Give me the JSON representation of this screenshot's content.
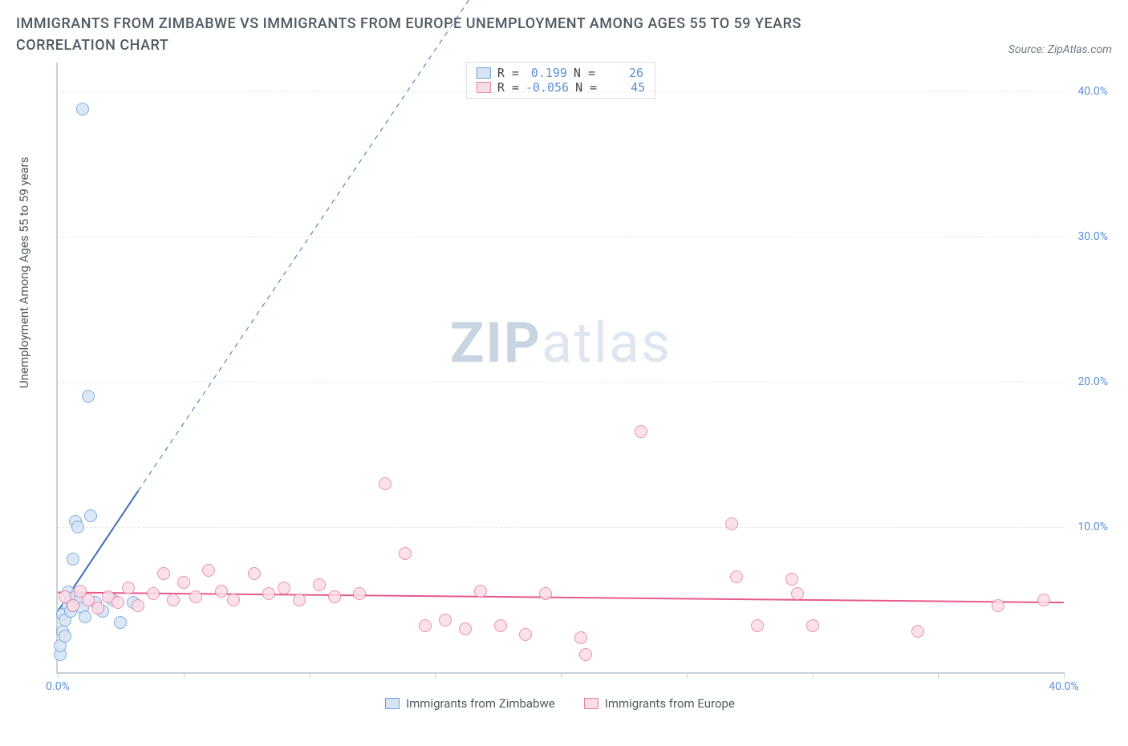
{
  "title": "IMMIGRANTS FROM ZIMBABWE VS IMMIGRANTS FROM EUROPE UNEMPLOYMENT AMONG AGES 55 TO 59 YEARS CORRELATION CHART",
  "title_fontsize": 18,
  "source": "Source: ZipAtlas.com",
  "ylabel": "Unemployment Among Ages 55 to 59 years",
  "watermark_a": "ZIP",
  "watermark_b": "atlas",
  "chart": {
    "type": "scatter",
    "background_color": "#ffffff",
    "axis_color": "#c9d0d8",
    "grid_color": "#e2e6ea",
    "tick_label_color": "#5b8fd6",
    "xlim": [
      0,
      40
    ],
    "ylim": [
      0,
      42
    ],
    "yticks": [
      10,
      20,
      30,
      40
    ],
    "ytick_labels": [
      "10.0%",
      "20.0%",
      "30.0%",
      "40.0%"
    ],
    "xticks": [
      0,
      5,
      10,
      15,
      20,
      25,
      30,
      35,
      40
    ],
    "xtick_labels_shown": {
      "0": "0.0%",
      "40": "40.0%"
    },
    "marker_radius": 8,
    "marker_stroke_width": 1.3,
    "series": [
      {
        "name": "Immigrants from Zimbabwe",
        "fill": "#d6e4f5",
        "stroke": "#6f9fd8",
        "R": "0.199",
        "N": "26",
        "points": [
          [
            0.1,
            1.2
          ],
          [
            0.1,
            1.8
          ],
          [
            0.2,
            2.8
          ],
          [
            0.2,
            4.0
          ],
          [
            0.3,
            2.5
          ],
          [
            0.3,
            3.6
          ],
          [
            0.4,
            4.6
          ],
          [
            0.4,
            5.5
          ],
          [
            0.5,
            5.0
          ],
          [
            0.5,
            4.2
          ],
          [
            0.6,
            4.6
          ],
          [
            0.6,
            7.8
          ],
          [
            0.7,
            5.2
          ],
          [
            0.7,
            10.4
          ],
          [
            0.8,
            10.0
          ],
          [
            0.9,
            5.0
          ],
          [
            1.0,
            4.4
          ],
          [
            1.1,
            3.8
          ],
          [
            1.3,
            10.8
          ],
          [
            1.5,
            4.8
          ],
          [
            1.8,
            4.2
          ],
          [
            2.2,
            5.0
          ],
          [
            2.5,
            3.4
          ],
          [
            3.0,
            4.8
          ],
          [
            1.2,
            19.0
          ],
          [
            1.0,
            38.8
          ]
        ],
        "fit": {
          "x1": 0,
          "y1": 4.2,
          "x2": 3.2,
          "y2": 12.5,
          "dash": false,
          "ext_x2": 17,
          "ext_y2": 48,
          "color": "#3f6fb5",
          "width": 2
        }
      },
      {
        "name": "Immigrants from Europe",
        "fill": "#fbdde7",
        "stroke": "#e87fa5",
        "R": "-0.056",
        "N": "45",
        "points": [
          [
            0.3,
            5.2
          ],
          [
            0.6,
            4.6
          ],
          [
            0.9,
            5.6
          ],
          [
            1.2,
            5.0
          ],
          [
            1.6,
            4.4
          ],
          [
            2.0,
            5.2
          ],
          [
            2.4,
            4.8
          ],
          [
            2.8,
            5.8
          ],
          [
            3.2,
            4.6
          ],
          [
            3.8,
            5.4
          ],
          [
            4.2,
            6.8
          ],
          [
            4.6,
            5.0
          ],
          [
            5.0,
            6.2
          ],
          [
            5.5,
            5.2
          ],
          [
            6.0,
            7.0
          ],
          [
            6.5,
            5.6
          ],
          [
            7.0,
            5.0
          ],
          [
            7.8,
            6.8
          ],
          [
            8.4,
            5.4
          ],
          [
            9.0,
            5.8
          ],
          [
            9.6,
            5.0
          ],
          [
            10.4,
            6.0
          ],
          [
            11.0,
            5.2
          ],
          [
            12.0,
            5.4
          ],
          [
            13.0,
            13.0
          ],
          [
            13.8,
            8.2
          ],
          [
            14.6,
            3.2
          ],
          [
            15.4,
            3.6
          ],
          [
            16.2,
            3.0
          ],
          [
            16.8,
            5.6
          ],
          [
            17.6,
            3.2
          ],
          [
            18.6,
            2.6
          ],
          [
            19.4,
            5.4
          ],
          [
            20.8,
            2.4
          ],
          [
            21.0,
            1.2
          ],
          [
            23.2,
            16.6
          ],
          [
            26.8,
            10.2
          ],
          [
            27.0,
            6.6
          ],
          [
            27.8,
            3.2
          ],
          [
            29.2,
            6.4
          ],
          [
            29.4,
            5.4
          ],
          [
            30.0,
            3.2
          ],
          [
            34.2,
            2.8
          ],
          [
            37.4,
            4.6
          ],
          [
            39.2,
            5.0
          ]
        ],
        "fit": {
          "x1": 0,
          "y1": 5.5,
          "x2": 40,
          "y2": 4.8,
          "dash": false,
          "color": "#e65a8f",
          "width": 2
        }
      }
    ]
  },
  "legend": {
    "r_label": "R =",
    "n_label": "N ="
  },
  "bottom_legend": {
    "series1": "Immigrants from Zimbabwe",
    "series2": "Immigrants from Europe"
  }
}
